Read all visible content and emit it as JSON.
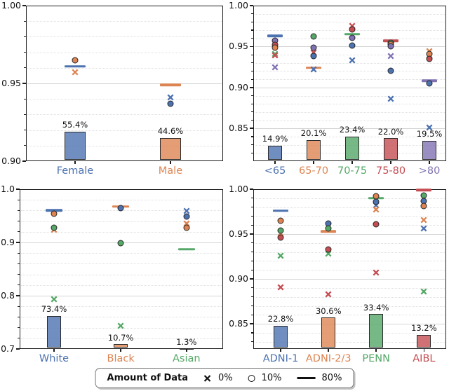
{
  "palette": {
    "blue": "#4C72B0",
    "orange": "#DD8452",
    "green": "#55A868",
    "red": "#C44E52",
    "purple": "#8172B3"
  },
  "legend": {
    "title": "Amount of Data",
    "items": [
      {
        "marker": "x",
        "label": "0%"
      },
      {
        "marker": "circle",
        "label": "10%"
      },
      {
        "marker": "line",
        "label": "80%"
      }
    ]
  },
  "chart_data": [
    {
      "id": "sex",
      "type": "bar+markers",
      "position": "top-left",
      "ylim": [
        0.9,
        1.0
      ],
      "yticks": [
        {
          "v": 1.0,
          "label": "1.00"
        },
        {
          "v": 0.95,
          "label": "0.95"
        },
        {
          "v": 0.9,
          "label": "0.90"
        }
      ],
      "minor_step": 0.01,
      "categories": [
        {
          "label": "Female",
          "color": "blue"
        },
        {
          "label": "Male",
          "color": "orange"
        }
      ],
      "bars": [
        {
          "cat": 0,
          "pct_label": "55.4%",
          "top": 0.919
        },
        {
          "cat": 1,
          "pct_label": "44.6%",
          "top": 0.915
        }
      ],
      "markers": [
        {
          "cat": 0,
          "shape": "line",
          "color": "blue",
          "v": 0.961
        },
        {
          "cat": 0,
          "shape": "circle",
          "color": "orange",
          "v": 0.965
        },
        {
          "cat": 0,
          "shape": "x",
          "color": "orange",
          "v": 0.957
        },
        {
          "cat": 1,
          "shape": "line",
          "color": "orange",
          "v": 0.949
        },
        {
          "cat": 1,
          "shape": "x",
          "color": "blue",
          "v": 0.941
        },
        {
          "cat": 1,
          "shape": "circle",
          "color": "blue",
          "v": 0.937
        }
      ]
    },
    {
      "id": "age",
      "type": "bar+markers",
      "position": "top-right",
      "ylim": [
        0.81,
        1.0
      ],
      "yticks": [
        {
          "v": 1.0,
          "label": "1.00"
        },
        {
          "v": 0.95,
          "label": "0.95"
        },
        {
          "v": 0.9,
          "label": "0.90"
        },
        {
          "v": 0.85,
          "label": "0.85"
        }
      ],
      "minor_step": 0.01,
      "categories": [
        {
          "label": "<65",
          "color": "blue"
        },
        {
          "label": "65-70",
          "color": "orange"
        },
        {
          "label": "70-75",
          "color": "green"
        },
        {
          "label": "75-80",
          "color": "red"
        },
        {
          "label": ">80",
          "color": "purple"
        }
      ],
      "bars": [
        {
          "cat": 0,
          "pct_label": "14.9%",
          "top": 0.829
        },
        {
          "cat": 1,
          "pct_label": "20.1%",
          "top": 0.836
        },
        {
          "cat": 2,
          "pct_label": "23.4%",
          "top": 0.84
        },
        {
          "cat": 3,
          "pct_label": "22.0%",
          "top": 0.838
        },
        {
          "cat": 4,
          "pct_label": "19.5%",
          "top": 0.835
        }
      ],
      "markers": [
        {
          "cat": 0,
          "shape": "line",
          "color": "blue",
          "v": 0.963
        },
        {
          "cat": 0,
          "shape": "circle",
          "color": "purple",
          "v": 0.957
        },
        {
          "cat": 0,
          "shape": "circle",
          "color": "red",
          "v": 0.952
        },
        {
          "cat": 0,
          "shape": "circle",
          "color": "orange",
          "v": 0.949
        },
        {
          "cat": 0,
          "shape": "x",
          "color": "green",
          "v": 0.941
        },
        {
          "cat": 0,
          "shape": "x",
          "color": "red",
          "v": 0.939
        },
        {
          "cat": 0,
          "shape": "x",
          "color": "purple",
          "v": 0.925
        },
        {
          "cat": 1,
          "shape": "circle",
          "color": "green",
          "v": 0.962
        },
        {
          "cat": 1,
          "shape": "circle",
          "color": "purple",
          "v": 0.949
        },
        {
          "cat": 1,
          "shape": "x",
          "color": "red",
          "v": 0.943
        },
        {
          "cat": 1,
          "shape": "circle",
          "color": "blue",
          "v": 0.938
        },
        {
          "cat": 1,
          "shape": "line",
          "color": "orange",
          "v": 0.924
        },
        {
          "cat": 1,
          "shape": "x",
          "color": "blue",
          "v": 0.922
        },
        {
          "cat": 2,
          "shape": "x",
          "color": "red",
          "v": 0.975
        },
        {
          "cat": 2,
          "shape": "circle",
          "color": "red",
          "v": 0.971
        },
        {
          "cat": 2,
          "shape": "line",
          "color": "green",
          "v": 0.965
        },
        {
          "cat": 2,
          "shape": "circle",
          "color": "purple",
          "v": 0.961
        },
        {
          "cat": 2,
          "shape": "circle",
          "color": "blue",
          "v": 0.951
        },
        {
          "cat": 2,
          "shape": "x",
          "color": "blue",
          "v": 0.933
        },
        {
          "cat": 3,
          "shape": "line",
          "color": "red",
          "v": 0.957
        },
        {
          "cat": 3,
          "shape": "circle",
          "color": "green",
          "v": 0.955
        },
        {
          "cat": 3,
          "shape": "circle",
          "color": "orange",
          "v": 0.953
        },
        {
          "cat": 3,
          "shape": "circle",
          "color": "purple",
          "v": 0.95
        },
        {
          "cat": 3,
          "shape": "x",
          "color": "purple",
          "v": 0.938
        },
        {
          "cat": 3,
          "shape": "circle",
          "color": "blue",
          "v": 0.92
        },
        {
          "cat": 3,
          "shape": "x",
          "color": "blue",
          "v": 0.886
        },
        {
          "cat": 4,
          "shape": "x",
          "color": "orange",
          "v": 0.944
        },
        {
          "cat": 4,
          "shape": "circle",
          "color": "orange",
          "v": 0.941
        },
        {
          "cat": 4,
          "shape": "x",
          "color": "green",
          "v": 0.939
        },
        {
          "cat": 4,
          "shape": "circle",
          "color": "red",
          "v": 0.935
        },
        {
          "cat": 4,
          "shape": "line",
          "color": "purple",
          "v": 0.908
        },
        {
          "cat": 4,
          "shape": "circle",
          "color": "blue",
          "v": 0.905
        },
        {
          "cat": 4,
          "shape": "x",
          "color": "blue",
          "v": 0.851
        }
      ]
    },
    {
      "id": "race",
      "type": "bar+markers",
      "position": "bottom-left",
      "ylim": [
        0.7,
        1.0
      ],
      "yticks": [
        {
          "v": 1.0,
          "label": "1.0"
        },
        {
          "v": 0.9,
          "label": "0.9"
        },
        {
          "v": 0.8,
          "label": "0.8"
        },
        {
          "v": 0.7,
          "label": "0.7"
        }
      ],
      "minor_step": 0.02,
      "categories": [
        {
          "label": "White",
          "color": "blue"
        },
        {
          "label": "Black",
          "color": "orange"
        },
        {
          "label": "Asian",
          "color": "green"
        }
      ],
      "bars": [
        {
          "cat": 0,
          "pct_label": "73.4%",
          "top": 0.762
        },
        {
          "cat": 1,
          "pct_label": "10.7%",
          "top": 0.709
        },
        {
          "cat": 2,
          "pct_label": "1.3%",
          "top": 0.701
        }
      ],
      "markers": [
        {
          "cat": 0,
          "shape": "line",
          "color": "blue",
          "v": 0.96
        },
        {
          "cat": 0,
          "shape": "circle",
          "color": "orange",
          "v": 0.954
        },
        {
          "cat": 0,
          "shape": "x",
          "color": "orange",
          "v": 0.924
        },
        {
          "cat": 0,
          "shape": "circle",
          "color": "green",
          "v": 0.927
        },
        {
          "cat": 0,
          "shape": "x",
          "color": "green",
          "v": 0.793
        },
        {
          "cat": 1,
          "shape": "line",
          "color": "orange",
          "v": 0.967
        },
        {
          "cat": 1,
          "shape": "circle",
          "color": "blue",
          "v": 0.964
        },
        {
          "cat": 1,
          "shape": "circle",
          "color": "green",
          "v": 0.899
        },
        {
          "cat": 1,
          "shape": "x",
          "color": "green",
          "v": 0.744
        },
        {
          "cat": 2,
          "shape": "x",
          "color": "blue",
          "v": 0.959
        },
        {
          "cat": 2,
          "shape": "circle",
          "color": "blue",
          "v": 0.949
        },
        {
          "cat": 2,
          "shape": "x",
          "color": "orange",
          "v": 0.936
        },
        {
          "cat": 2,
          "shape": "circle",
          "color": "orange",
          "v": 0.927
        },
        {
          "cat": 2,
          "shape": "line",
          "color": "green",
          "v": 0.887
        }
      ]
    },
    {
      "id": "dataset",
      "type": "bar+markers",
      "position": "bottom-right",
      "ylim": [
        0.822,
        1.0
      ],
      "yticks": [
        {
          "v": 1.0,
          "label": "1.00"
        },
        {
          "v": 0.95,
          "label": "0.95"
        },
        {
          "v": 0.9,
          "label": "0.90"
        },
        {
          "v": 0.85,
          "label": "0.85"
        }
      ],
      "minor_step": 0.01,
      "categories": [
        {
          "label": "ADNI-1",
          "color": "blue"
        },
        {
          "label": "ADNI-2/3",
          "color": "orange"
        },
        {
          "label": "PENN",
          "color": "green"
        },
        {
          "label": "AIBL",
          "color": "red"
        }
      ],
      "bars": [
        {
          "cat": 0,
          "pct_label": "22.8%",
          "top": 0.848
        },
        {
          "cat": 1,
          "pct_label": "30.6%",
          "top": 0.857
        },
        {
          "cat": 2,
          "pct_label": "33.4%",
          "top": 0.861
        },
        {
          "cat": 3,
          "pct_label": "13.2%",
          "top": 0.838
        }
      ],
      "markers": [
        {
          "cat": 0,
          "shape": "line",
          "color": "blue",
          "v": 0.976
        },
        {
          "cat": 0,
          "shape": "circle",
          "color": "orange",
          "v": 0.965
        },
        {
          "cat": 0,
          "shape": "x",
          "color": "orange",
          "v": 0.951
        },
        {
          "cat": 0,
          "shape": "circle",
          "color": "green",
          "v": 0.954
        },
        {
          "cat": 0,
          "shape": "circle",
          "color": "red",
          "v": 0.946
        },
        {
          "cat": 0,
          "shape": "x",
          "color": "green",
          "v": 0.926
        },
        {
          "cat": 0,
          "shape": "x",
          "color": "red",
          "v": 0.891
        },
        {
          "cat": 1,
          "shape": "circle",
          "color": "blue",
          "v": 0.962
        },
        {
          "cat": 1,
          "shape": "circle",
          "color": "green",
          "v": 0.956
        },
        {
          "cat": 1,
          "shape": "line",
          "color": "orange",
          "v": 0.953
        },
        {
          "cat": 1,
          "shape": "circle",
          "color": "red",
          "v": 0.933
        },
        {
          "cat": 1,
          "shape": "x",
          "color": "green",
          "v": 0.928
        },
        {
          "cat": 1,
          "shape": "x",
          "color": "red",
          "v": 0.883
        },
        {
          "cat": 2,
          "shape": "circle",
          "color": "orange",
          "v": 0.992
        },
        {
          "cat": 2,
          "shape": "line",
          "color": "green",
          "v": 0.99
        },
        {
          "cat": 2,
          "shape": "circle",
          "color": "blue",
          "v": 0.986
        },
        {
          "cat": 2,
          "shape": "x",
          "color": "blue",
          "v": 0.982
        },
        {
          "cat": 2,
          "shape": "x",
          "color": "orange",
          "v": 0.977
        },
        {
          "cat": 2,
          "shape": "circle",
          "color": "red",
          "v": 0.961
        },
        {
          "cat": 2,
          "shape": "x",
          "color": "red",
          "v": 0.907
        },
        {
          "cat": 3,
          "shape": "line",
          "color": "red",
          "v": 0.999
        },
        {
          "cat": 3,
          "shape": "circle",
          "color": "green",
          "v": 0.993
        },
        {
          "cat": 3,
          "shape": "circle",
          "color": "blue",
          "v": 0.987
        },
        {
          "cat": 3,
          "shape": "circle",
          "color": "orange",
          "v": 0.981
        },
        {
          "cat": 3,
          "shape": "x",
          "color": "orange",
          "v": 0.966
        },
        {
          "cat": 3,
          "shape": "x",
          "color": "blue",
          "v": 0.956
        },
        {
          "cat": 3,
          "shape": "x",
          "color": "green",
          "v": 0.886
        }
      ]
    }
  ]
}
